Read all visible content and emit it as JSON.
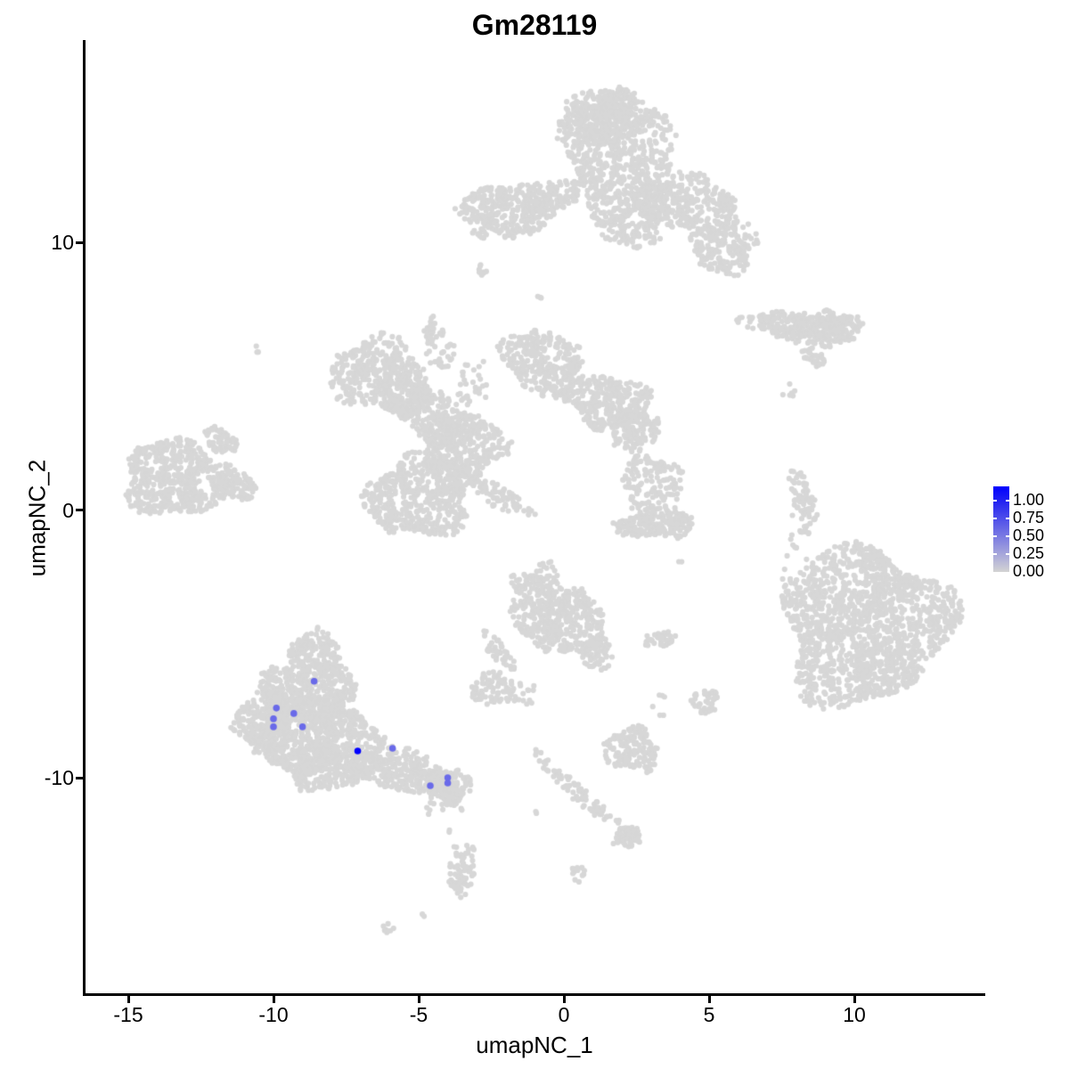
{
  "title": "Gm28119",
  "axes": {
    "x_label": "umapNC_1",
    "y_label": "umapNC_2",
    "x_ticks": [
      "-15",
      "-10",
      "-5",
      "0",
      "5",
      "10"
    ],
    "y_ticks": [
      "10",
      "0",
      "-10"
    ]
  },
  "legend": {
    "labels": [
      "1.00",
      "0.75",
      "0.50",
      "0.25",
      "0.00"
    ],
    "color_high": "#0000FF",
    "color_low": "#D3D3D3"
  },
  "chart_data": {
    "type": "scatter",
    "title": "Gm28119",
    "xlabel": "umapNC_1",
    "ylabel": "umapNC_2",
    "xlim": [
      -16.5,
      14.5
    ],
    "ylim": [
      -18.1,
      17.6
    ],
    "x_ticks": [
      -15,
      -10,
      -5,
      0,
      5,
      10
    ],
    "y_ticks": [
      10,
      0,
      -10
    ],
    "grid": false,
    "legend_position": "right",
    "legend_breaks": [
      1.0,
      0.75,
      0.5,
      0.25,
      0.0
    ],
    "background_point_color": "#D7D7D7",
    "gradient_low": "#D3D3D3",
    "gradient_high": "#0000FF",
    "clusters": [
      {
        "name": "top-head",
        "cx": 2.0,
        "cy": 12.9,
        "rx": 1.75,
        "ry": 3.0,
        "rot": 8,
        "n": 850
      },
      {
        "name": "top-head-cap",
        "cx": 1.2,
        "cy": 14.6,
        "rx": 1.5,
        "ry": 1.0,
        "rot": 0,
        "n": 250
      },
      {
        "name": "top-left-arm",
        "cx": -2.0,
        "cy": 11.2,
        "rx": 1.55,
        "ry": 0.95,
        "rot": -5,
        "n": 300
      },
      {
        "name": "top-bridge",
        "cx": -0.4,
        "cy": 11.7,
        "rx": 1.0,
        "ry": 0.6,
        "rot": 15,
        "n": 120
      },
      {
        "name": "top-right-arm",
        "cx": 4.3,
        "cy": 11.4,
        "rx": 1.8,
        "ry": 1.05,
        "rot": -12,
        "n": 330
      },
      {
        "name": "top-right-lower",
        "cx": 5.5,
        "cy": 9.9,
        "rx": 1.15,
        "ry": 1.05,
        "rot": 0,
        "n": 200
      },
      {
        "name": "top-satellite-1",
        "cx": -2.9,
        "cy": 10.35,
        "rx": 0.3,
        "ry": 0.25,
        "rot": 0,
        "n": 12
      },
      {
        "name": "top-satellite-2",
        "cx": -2.85,
        "cy": 8.9,
        "rx": 0.2,
        "ry": 0.4,
        "rot": 0,
        "n": 10
      },
      {
        "name": "top-satellite-3",
        "cx": -0.85,
        "cy": 7.9,
        "rx": 0.13,
        "ry": 0.13,
        "rot": 0,
        "n": 3
      },
      {
        "name": "center-ul-lobe",
        "cx": -6.3,
        "cy": 5.0,
        "rx": 1.75,
        "ry": 1.35,
        "rot": -20,
        "n": 420
      },
      {
        "name": "center-ul-band",
        "cx": -4.7,
        "cy": 3.7,
        "rx": 1.7,
        "ry": 0.85,
        "rot": -35,
        "n": 260
      },
      {
        "name": "center-core",
        "cx": -3.5,
        "cy": 2.4,
        "rx": 1.45,
        "ry": 1.3,
        "rot": 0,
        "n": 380
      },
      {
        "name": "center-ur-arm",
        "cx": -0.7,
        "cy": 5.5,
        "rx": 1.5,
        "ry": 1.15,
        "rot": -38,
        "n": 300
      },
      {
        "name": "center-ur-blob",
        "cx": 1.5,
        "cy": 4.1,
        "rx": 1.5,
        "ry": 1.0,
        "rot": -10,
        "n": 300
      },
      {
        "name": "center-r-ext",
        "cx": 2.4,
        "cy": 3.1,
        "rx": 0.85,
        "ry": 0.8,
        "rot": 0,
        "n": 140
      },
      {
        "name": "center-ll-lobe",
        "cx": -5.0,
        "cy": 0.5,
        "rx": 1.8,
        "ry": 1.55,
        "rot": 10,
        "n": 520
      },
      {
        "name": "center-tail",
        "cx": -2.3,
        "cy": 0.55,
        "rx": 1.4,
        "ry": 0.4,
        "rot": -33,
        "n": 90
      },
      {
        "name": "center-stem",
        "cx": -4.35,
        "cy": 6.2,
        "rx": 0.45,
        "ry": 1.0,
        "rot": 18,
        "n": 55
      },
      {
        "name": "center-stem-sparse",
        "cx": -3.2,
        "cy": 4.6,
        "rx": 0.7,
        "ry": 1.0,
        "rot": 0,
        "n": 30
      },
      {
        "name": "midright-cloud",
        "cx": 3.0,
        "cy": 1.05,
        "rx": 1.05,
        "ry": 1.05,
        "rot": 0,
        "n": 130
      },
      {
        "name": "midright-crescent",
        "cx": 3.15,
        "cy": -0.5,
        "rx": 1.4,
        "ry": 0.58,
        "rot": 5,
        "n": 200
      },
      {
        "name": "midright-dots",
        "cx": 2.45,
        "cy": 2.3,
        "rx": 0.25,
        "ry": 0.3,
        "rot": 0,
        "n": 8
      },
      {
        "name": "midright-dot",
        "cx": 4.0,
        "cy": -2.0,
        "rx": 0.12,
        "ry": 0.12,
        "rot": 0,
        "n": 2
      },
      {
        "name": "right-strip",
        "cx": 8.1,
        "cy": 6.85,
        "rx": 1.85,
        "ry": 0.55,
        "rot": -7,
        "n": 260
      },
      {
        "name": "right-strip-end",
        "cx": 9.35,
        "cy": 6.8,
        "rx": 0.85,
        "ry": 0.65,
        "rot": 0,
        "n": 120
      },
      {
        "name": "right-dash",
        "cx": 8.6,
        "cy": 5.75,
        "rx": 0.48,
        "ry": 0.3,
        "rot": -35,
        "n": 30
      },
      {
        "name": "right-dots",
        "cx": 7.75,
        "cy": 4.45,
        "rx": 0.35,
        "ry": 0.35,
        "rot": 0,
        "n": 6
      },
      {
        "name": "right-sliver",
        "cx": 8.2,
        "cy": 0.25,
        "rx": 0.4,
        "ry": 1.25,
        "rot": 8,
        "n": 80
      },
      {
        "name": "right-sliver-dots",
        "cx": 7.95,
        "cy": -1.3,
        "rx": 0.15,
        "ry": 0.5,
        "rot": 0,
        "n": 6
      },
      {
        "name": "bigright-body",
        "cx": 10.35,
        "cy": -4.3,
        "rx": 2.85,
        "ry": 2.95,
        "rot": -15,
        "n": 1500
      },
      {
        "name": "bigright-halo",
        "cx": 7.9,
        "cy": -2.6,
        "rx": 0.6,
        "ry": 1.2,
        "rot": 0,
        "n": 12
      },
      {
        "name": "botcenter-left",
        "cx": -0.85,
        "cy": -3.5,
        "rx": 1.05,
        "ry": 1.55,
        "rot": 0,
        "n": 260
      },
      {
        "name": "botcenter-right",
        "cx": 0.3,
        "cy": -4.3,
        "rx": 1.05,
        "ry": 1.25,
        "rot": -40,
        "n": 220
      },
      {
        "name": "botcenter-tip",
        "cx": 1.15,
        "cy": -5.4,
        "rx": 0.5,
        "ry": 0.65,
        "rot": 0,
        "n": 70
      },
      {
        "name": "botcenter-tail",
        "cx": -2.25,
        "cy": -5.3,
        "rx": 0.85,
        "ry": 0.28,
        "rot": -55,
        "n": 45
      },
      {
        "name": "botcenter-blob",
        "cx": -2.35,
        "cy": -6.7,
        "rx": 0.9,
        "ry": 0.6,
        "rot": 0,
        "n": 90
      },
      {
        "name": "botcenter-dots",
        "cx": -1.2,
        "cy": -6.9,
        "rx": 0.45,
        "ry": 0.35,
        "rot": 0,
        "n": 10
      },
      {
        "name": "island-right",
        "cx": 3.3,
        "cy": -4.85,
        "rx": 0.6,
        "ry": 0.3,
        "rot": 5,
        "n": 40
      },
      {
        "name": "island-right-dots",
        "cx": 3.3,
        "cy": -7.3,
        "rx": 0.25,
        "ry": 0.45,
        "rot": 0,
        "n": 6
      },
      {
        "name": "island-triangle",
        "cx": 4.85,
        "cy": -7.15,
        "rx": 0.45,
        "ry": 0.45,
        "rot": 0,
        "n": 45
      },
      {
        "name": "island-pair",
        "cx": 2.5,
        "cy": -8.2,
        "rx": 0.3,
        "ry": 0.15,
        "rot": 0,
        "n": 4
      },
      {
        "name": "cloud-blob",
        "cx": 2.35,
        "cy": -8.95,
        "rx": 0.95,
        "ry": 0.8,
        "rot": 0,
        "n": 150
      },
      {
        "name": "trail-diag",
        "cx": 0.5,
        "cy": -10.55,
        "rx": 2.3,
        "ry": 0.26,
        "rot": -43,
        "n": 90
      },
      {
        "name": "trail-end",
        "cx": 2.2,
        "cy": -12.25,
        "rx": 0.5,
        "ry": 0.45,
        "rot": 0,
        "n": 60
      },
      {
        "name": "trail-dot",
        "cx": -0.9,
        "cy": -11.3,
        "rx": 0.1,
        "ry": 0.1,
        "rot": 0,
        "n": 2
      },
      {
        "name": "trail-blob",
        "cx": 0.5,
        "cy": -13.6,
        "rx": 0.28,
        "ry": 0.3,
        "rot": 0,
        "n": 12
      },
      {
        "name": "botleft-apex",
        "cx": -8.55,
        "cy": -5.3,
        "rx": 0.9,
        "ry": 0.75,
        "rot": 0,
        "n": 150
      },
      {
        "name": "botleft-mid",
        "cx": -8.8,
        "cy": -6.8,
        "rx": 1.65,
        "ry": 1.1,
        "rot": 0,
        "n": 450
      },
      {
        "name": "botleft-base",
        "cx": -8.6,
        "cy": -8.4,
        "rx": 2.15,
        "ry": 1.35,
        "rot": 0,
        "n": 650
      },
      {
        "name": "botleft-west",
        "cx": -10.35,
        "cy": -7.9,
        "rx": 0.95,
        "ry": 1.15,
        "rot": 0,
        "n": 220
      },
      {
        "name": "botleft-south",
        "cx": -8.2,
        "cy": -9.6,
        "rx": 1.55,
        "ry": 0.85,
        "rot": 0,
        "n": 280
      },
      {
        "name": "botleft-tailband",
        "cx": -5.7,
        "cy": -9.75,
        "rx": 1.95,
        "ry": 0.8,
        "rot": -11,
        "n": 300
      },
      {
        "name": "botleft-tailtip",
        "cx": -3.95,
        "cy": -10.3,
        "rx": 0.8,
        "ry": 0.6,
        "rot": -10,
        "n": 130
      },
      {
        "name": "botleft-belowdots",
        "cx": -4.25,
        "cy": -11.1,
        "rx": 0.55,
        "ry": 0.45,
        "rot": 0,
        "n": 14
      },
      {
        "name": "botleft-single-1",
        "cx": -3.55,
        "cy": -11.2,
        "rx": 0.1,
        "ry": 0.1,
        "rot": 0,
        "n": 2
      },
      {
        "name": "botleft-single-2",
        "cx": -3.9,
        "cy": -12.0,
        "rx": 0.12,
        "ry": 0.12,
        "rot": 0,
        "n": 2
      },
      {
        "name": "botleft-single-3",
        "cx": -3.8,
        "cy": -12.6,
        "rx": 0.1,
        "ry": 0.1,
        "rot": 0,
        "n": 2
      },
      {
        "name": "kidney-blob",
        "cx": -3.5,
        "cy": -13.5,
        "rx": 0.42,
        "ry": 1.0,
        "rot": -8,
        "n": 70
      },
      {
        "name": "far-dot",
        "cx": -4.9,
        "cy": -15.2,
        "rx": 0.1,
        "ry": 0.1,
        "rot": 0,
        "n": 2
      },
      {
        "name": "far-dash",
        "cx": -6.15,
        "cy": -15.65,
        "rx": 0.28,
        "ry": 0.18,
        "rot": 20,
        "n": 8
      },
      {
        "name": "lone-dot-pair",
        "cx": -10.6,
        "cy": 6.0,
        "rx": 0.18,
        "ry": 0.12,
        "rot": -30,
        "n": 3
      },
      {
        "name": "left-oval",
        "cx": -13.3,
        "cy": 1.2,
        "rx": 1.9,
        "ry": 1.4,
        "rot": -5,
        "n": 550
      },
      {
        "name": "left-oval-point",
        "cx": -11.3,
        "cy": 0.9,
        "rx": 0.8,
        "ry": 0.45,
        "rot": -15,
        "n": 80
      },
      {
        "name": "left-oval-arm",
        "cx": -11.8,
        "cy": 2.6,
        "rx": 0.7,
        "ry": 0.4,
        "rot": -40,
        "n": 60
      }
    ],
    "expressing_cells": [
      {
        "x": -8.6,
        "y": -6.4,
        "value": 0.5
      },
      {
        "x": -9.9,
        "y": -7.4,
        "value": 0.5
      },
      {
        "x": -9.3,
        "y": -7.6,
        "value": 0.5
      },
      {
        "x": -10.0,
        "y": -7.8,
        "value": 0.5
      },
      {
        "x": -10.0,
        "y": -8.1,
        "value": 0.5
      },
      {
        "x": -9.0,
        "y": -8.1,
        "value": 0.5
      },
      {
        "x": -7.1,
        "y": -9.0,
        "value": 1.0
      },
      {
        "x": -5.9,
        "y": -8.9,
        "value": 0.5
      },
      {
        "x": -4.0,
        "y": -10.0,
        "value": 0.5
      },
      {
        "x": -4.6,
        "y": -10.3,
        "value": 0.5
      },
      {
        "x": -4.0,
        "y": -10.2,
        "value": 0.5
      }
    ]
  }
}
